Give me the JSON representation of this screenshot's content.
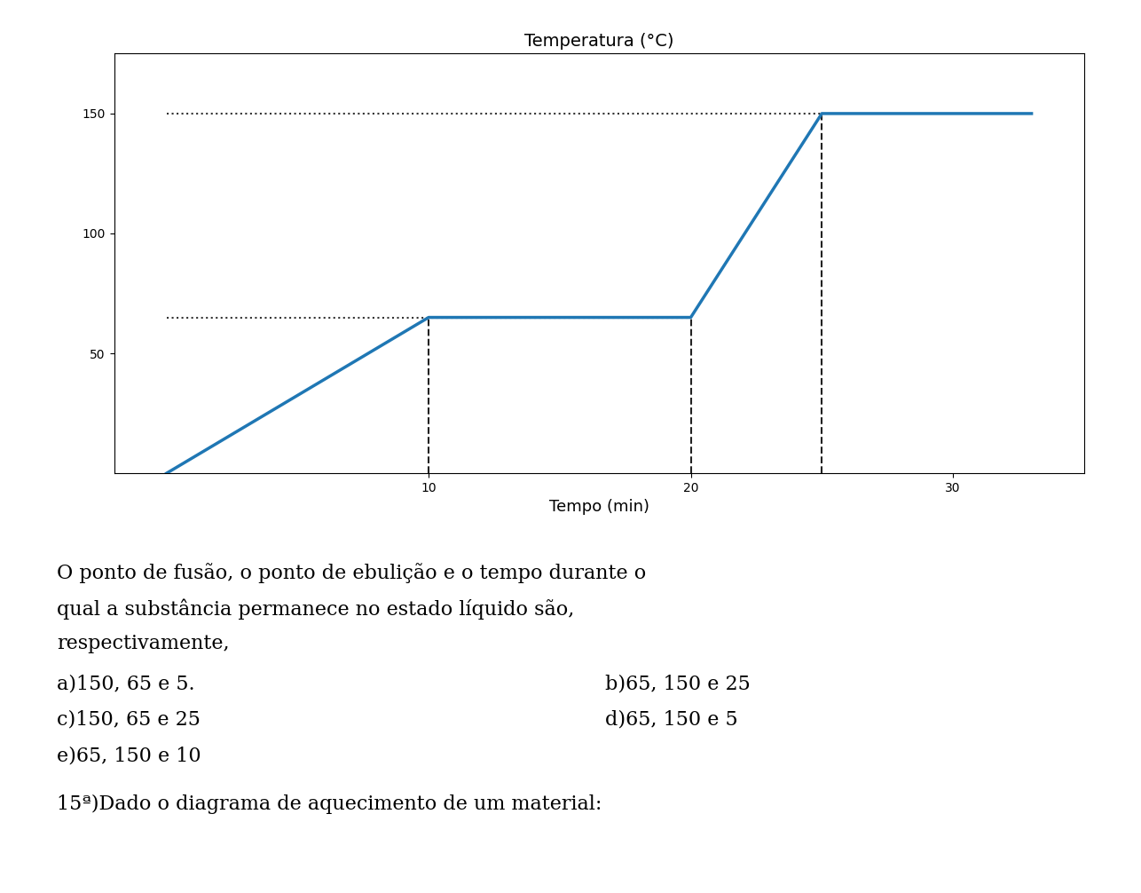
{
  "chart_data": {
    "type": "line",
    "title": "Temperatura (°C)",
    "xlabel": "Tempo (min)",
    "x": [
      0,
      10,
      20,
      25,
      33
    ],
    "values": [
      0,
      65,
      65,
      150,
      150
    ],
    "xlim": [
      -2,
      35
    ],
    "ylim": [
      0,
      175
    ],
    "xticks": [
      10,
      20,
      30
    ],
    "yticks": [
      50,
      100,
      150
    ],
    "grid": false,
    "reference_lines": [
      {
        "x": [
          0,
          20
        ],
        "y": [
          65,
          65
        ],
        "line_style": "dotted",
        "color": "#333333"
      },
      {
        "x": [
          0,
          25
        ],
        "y": [
          150,
          150
        ],
        "line_style": "dotted",
        "color": "#333333"
      },
      {
        "x": [
          10,
          10
        ],
        "y": [
          0,
          65
        ],
        "line_style": "dashed",
        "color": "#222222"
      },
      {
        "x": [
          20,
          20
        ],
        "y": [
          0,
          65
        ],
        "line_style": "dashed",
        "color": "#222222"
      },
      {
        "x": [
          25,
          25
        ],
        "y": [
          0,
          150
        ],
        "line_style": "dashed",
        "color": "#222222"
      }
    ],
    "annotations": [
      "O ponto de fusão, o ponto de ebulição e o tempo durante o",
      "qual a substância permanece no estado líquido são,",
      "respectivamente,",
      "a)150, 65 e 5.",
      "b)65, 150 e 25",
      "c)150, 65 e 25",
      "d)65, 150 e 5",
      "e)65, 150 e 10",
      "15ª)Dado o diagrama de aquecimento de um material:"
    ]
  }
}
